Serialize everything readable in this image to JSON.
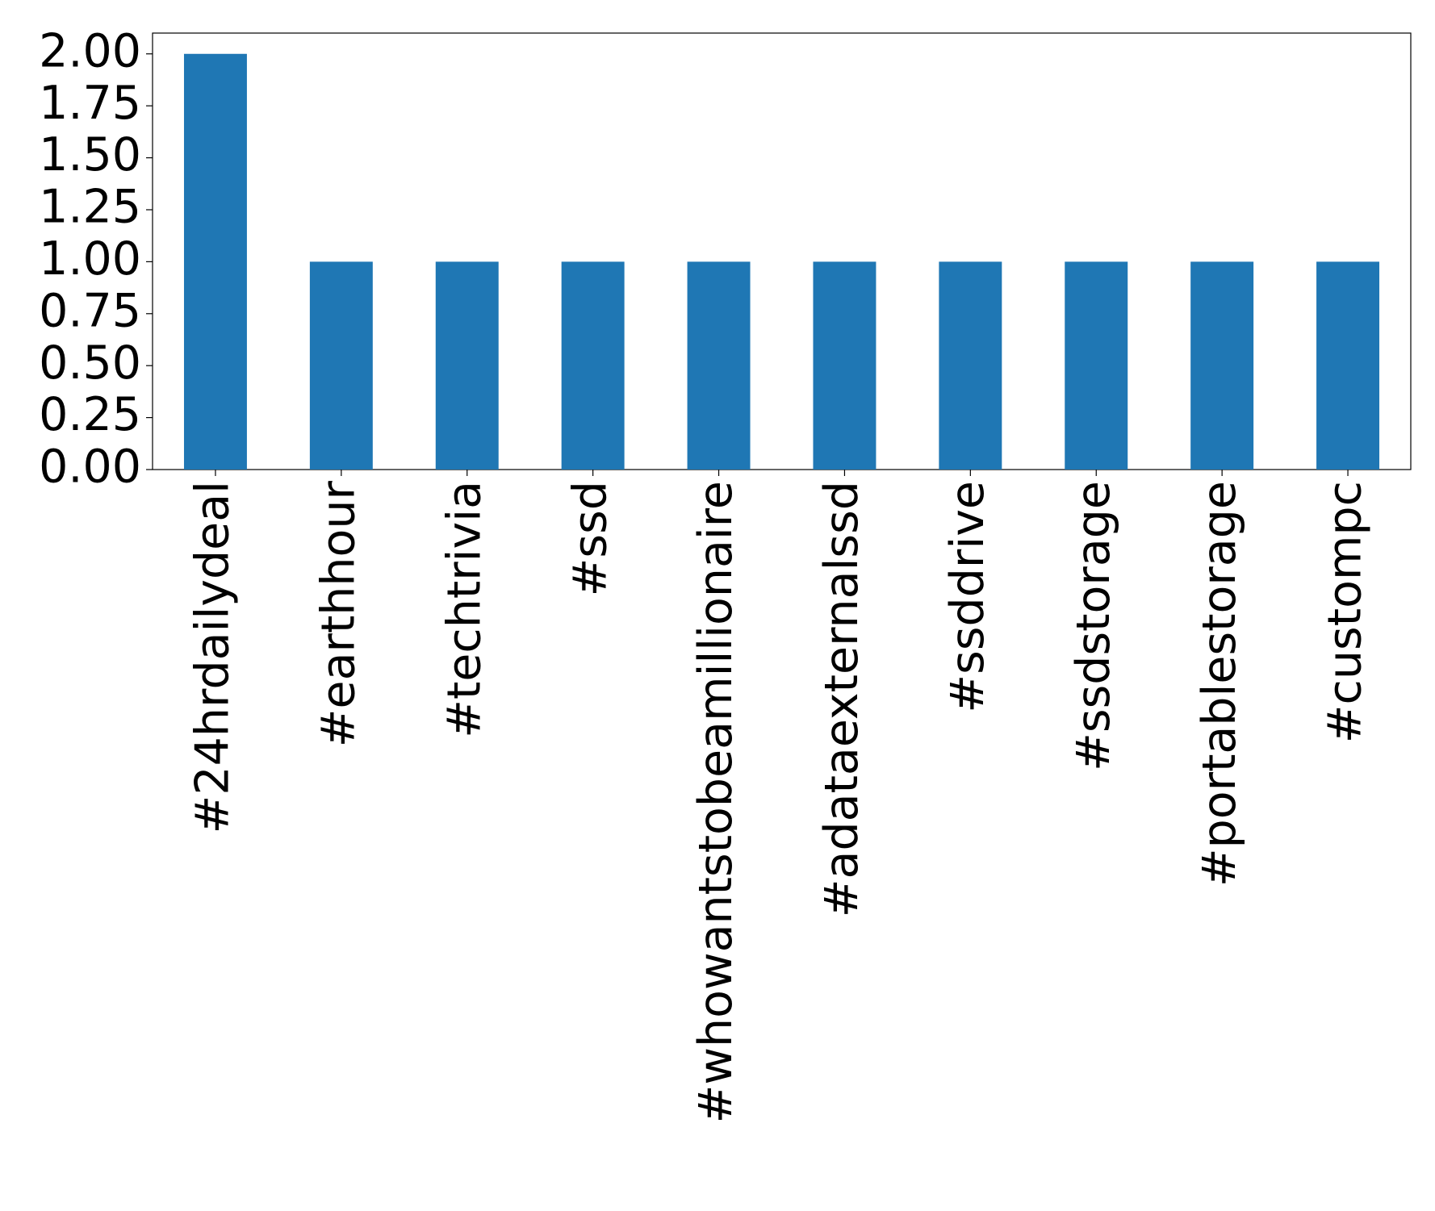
{
  "chart_data": {
    "type": "bar",
    "categories": [
      "#24hrdailydeal",
      "#earthhour",
      "#techtrivia",
      "#ssd",
      "#whowantstobeamillionaire",
      "#adataexternalssd",
      "#ssddrive",
      "#ssdstorage",
      "#portablestorage",
      "#custompc"
    ],
    "values": [
      2,
      1,
      1,
      1,
      1,
      1,
      1,
      1,
      1,
      1
    ],
    "color": "#1f77b4",
    "ylim": [
      0,
      2.1
    ],
    "yticks": [
      {
        "value": 0,
        "label": "0.00"
      },
      {
        "value": 0.25,
        "label": "0.25"
      },
      {
        "value": 0.5,
        "label": "0.50"
      },
      {
        "value": 0.75,
        "label": "0.75"
      },
      {
        "value": 1,
        "label": "1.00"
      },
      {
        "value": 1.25,
        "label": "1.25"
      },
      {
        "value": 1.5,
        "label": "1.50"
      },
      {
        "value": 1.75,
        "label": "1.75"
      },
      {
        "value": 2,
        "label": "2.00"
      }
    ],
    "grid": false
  }
}
